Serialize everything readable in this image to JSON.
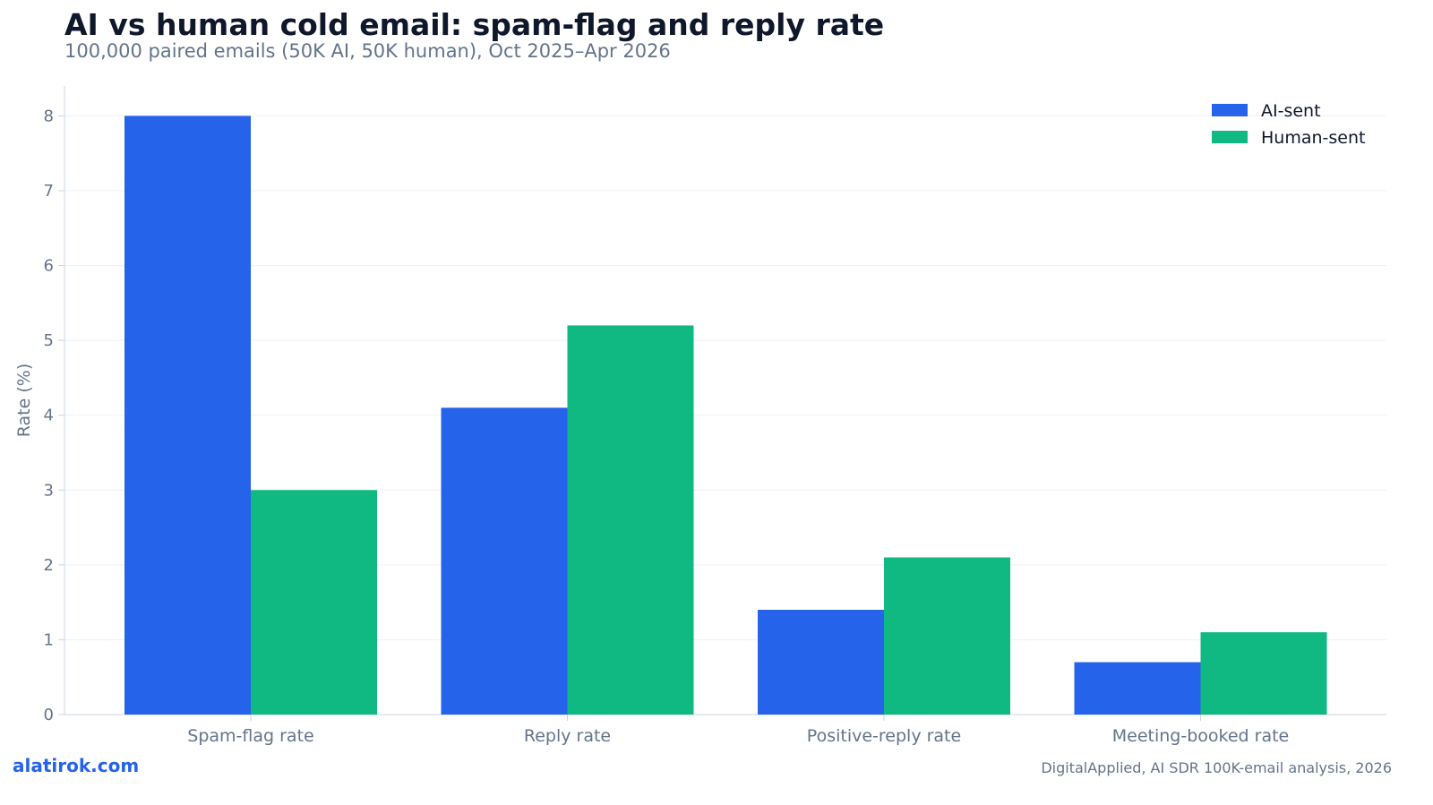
{
  "header": {
    "title": "AI vs human cold email: spam-flag and reply rate",
    "subtitle": "100,000 paired emails (50K AI, 50K human), Oct 2025–Apr 2026"
  },
  "footer": {
    "brand": "alatirok.com",
    "source": "DigitalApplied, AI SDR 100K-email analysis, 2026"
  },
  "chart_data": {
    "type": "bar",
    "title": "AI vs human cold email: spam-flag and reply rate",
    "subtitle": "100,000 paired emails (50K AI, 50K human), Oct 2025–Apr 2026",
    "xlabel": "",
    "ylabel": "Rate (%)",
    "ylim": [
      0,
      8.4
    ],
    "yticks": [
      0,
      1,
      2,
      3,
      4,
      5,
      6,
      7,
      8
    ],
    "grid": true,
    "legend_position": "top-right",
    "categories": [
      "Spam-flag rate",
      "Reply rate",
      "Positive-reply rate",
      "Meeting-booked rate"
    ],
    "series": [
      {
        "name": "AI-sent",
        "color": "#2563eb",
        "values": [
          8.0,
          4.1,
          1.4,
          0.7
        ]
      },
      {
        "name": "Human-sent",
        "color": "#10b981",
        "values": [
          3.0,
          5.2,
          2.1,
          1.1
        ]
      }
    ]
  }
}
